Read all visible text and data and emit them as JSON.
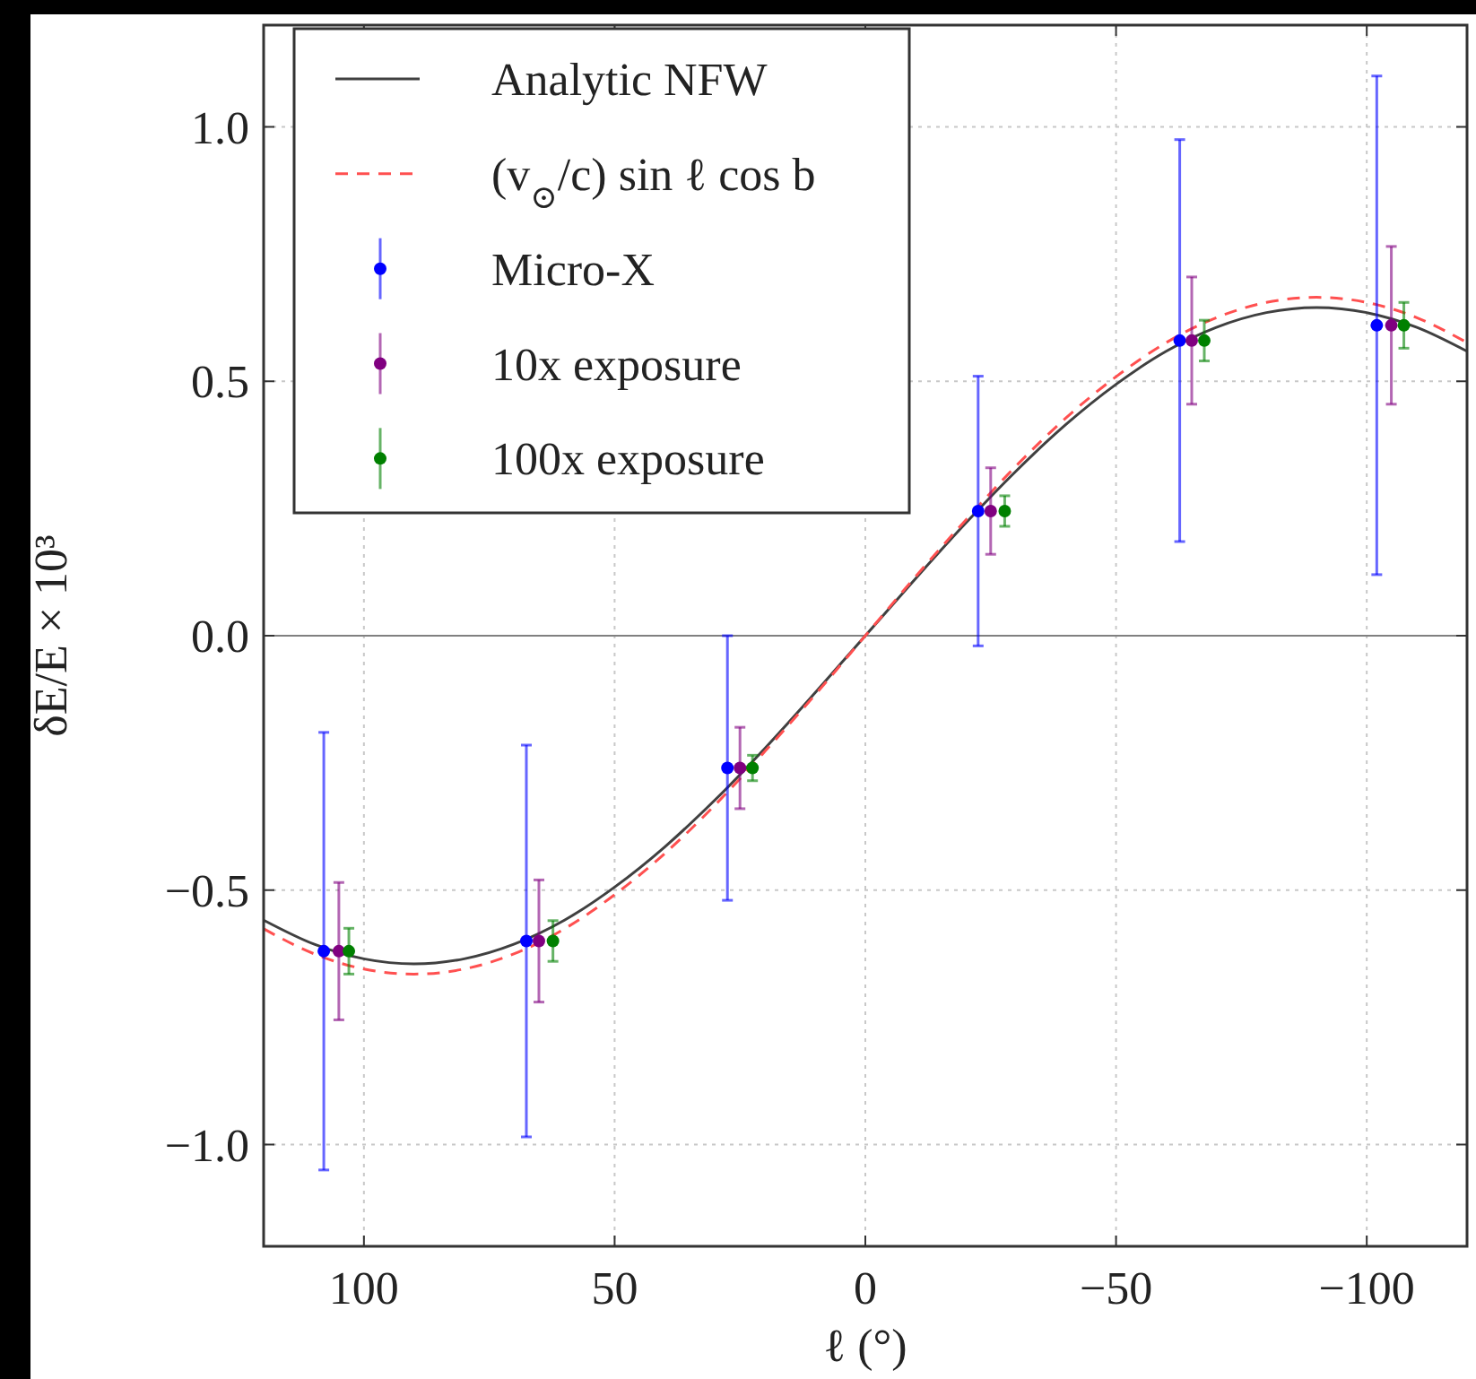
{
  "chart_data": {
    "type": "scatter",
    "xlabel": "ℓ (°)",
    "ylabel": "δE/E × 10³",
    "xlim": [
      120,
      -120
    ],
    "ylim": [
      -1.2,
      1.2
    ],
    "xticks": [
      100,
      50,
      0,
      {
        "value": -50,
        "label": "−50"
      },
      {
        "value": -100,
        "label": "−100"
      }
    ],
    "yticks": [
      {
        "value": -1.0,
        "label": "−1.0"
      },
      {
        "value": -0.5,
        "label": "−0.5"
      },
      {
        "value": 0,
        "label": "0.0"
      },
      {
        "value": 0.5,
        "label": "0.5"
      },
      {
        "value": 1.0,
        "label": "1.0"
      }
    ],
    "grid": true,
    "legend": "top left",
    "ref_lines": [
      {
        "axis": "y",
        "value": 0,
        "color": "#808080"
      }
    ],
    "series": [
      {
        "name": "Analytic NFW",
        "type": "line",
        "color": "#404040",
        "line_style": "solid",
        "marker": "none",
        "x": [
          120,
          110,
          100,
          90,
          80,
          70,
          60,
          50,
          40,
          30,
          20,
          10,
          0,
          -10,
          -20,
          -30,
          -40,
          -50,
          -60,
          -70,
          -80,
          -90,
          -100,
          -110,
          -120
        ],
        "values": [
          -0.559,
          -0.606,
          -0.635,
          -0.645,
          -0.635,
          -0.606,
          -0.559,
          -0.494,
          -0.415,
          -0.323,
          -0.221,
          -0.112,
          0,
          0.112,
          0.221,
          0.323,
          0.415,
          0.494,
          0.559,
          0.606,
          0.635,
          0.645,
          0.635,
          0.606,
          0.559
        ]
      },
      {
        "name": "(v$_{⊙}$/c) sin ℓ cos b",
        "type": "line",
        "color": "#ff5050",
        "line_style": "dashed",
        "marker": "none",
        "x": [
          120,
          110,
          100,
          90,
          80,
          70,
          60,
          50,
          40,
          30,
          20,
          10,
          0,
          -10,
          -20,
          -30,
          -40,
          -50,
          -60,
          -70,
          -80,
          -90,
          -100,
          -110,
          -120
        ],
        "values": [
          -0.576,
          -0.625,
          -0.655,
          -0.665,
          -0.655,
          -0.625,
          -0.576,
          -0.509,
          -0.428,
          -0.333,
          -0.227,
          -0.116,
          0,
          0.116,
          0.227,
          0.333,
          0.428,
          0.509,
          0.576,
          0.625,
          0.655,
          0.665,
          0.655,
          0.625,
          0.576
        ]
      },
      {
        "name": "Micro-X",
        "type": "scatter",
        "color": "#0000ff",
        "marker": "circle",
        "x": [
          108,
          67.6,
          27.5,
          -22.5,
          -62.7,
          -102
        ],
        "values": [
          -0.62,
          -0.6,
          -0.26,
          0.245,
          0.58,
          0.61
        ],
        "errors": [
          0.43,
          0.385,
          0.26,
          0.265,
          0.395,
          0.49
        ]
      },
      {
        "name": "10x exposure",
        "type": "scatter",
        "color": "#800080",
        "marker": "circle",
        "x": [
          105,
          65.1,
          25,
          -25,
          -65.1,
          -104.9
        ],
        "values": [
          -0.62,
          -0.6,
          -0.26,
          0.245,
          0.58,
          0.61
        ],
        "errors": [
          0.135,
          0.12,
          0.08,
          0.085,
          0.125,
          0.155
        ]
      },
      {
        "name": "100x exposure",
        "type": "scatter",
        "color": "#008000",
        "marker": "circle",
        "x": [
          103,
          62.3,
          22.5,
          -27.8,
          -67.6,
          -107.4
        ],
        "values": [
          -0.62,
          -0.6,
          -0.26,
          0.245,
          0.58,
          0.61
        ],
        "errors": [
          0.045,
          0.04,
          0.025,
          0.03,
          0.04,
          0.045
        ]
      }
    ]
  }
}
